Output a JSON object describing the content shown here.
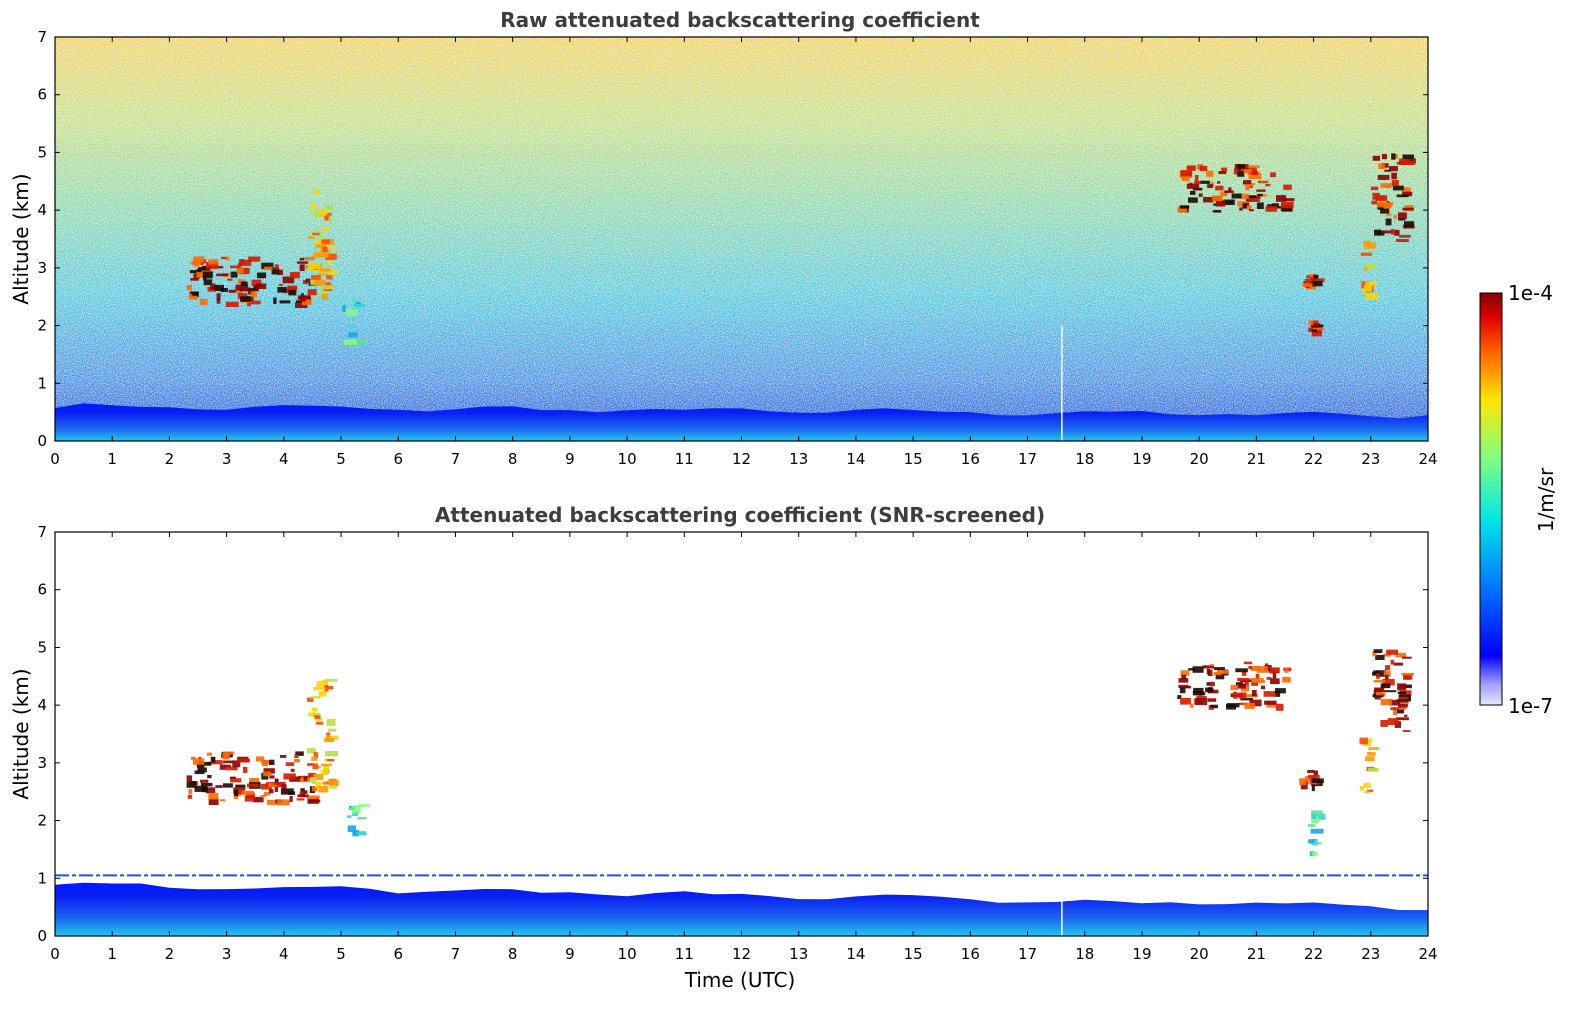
{
  "chart_data": [
    {
      "type": "heatmap",
      "title": "Raw attenuated backscattering coefficient",
      "xlabel": "",
      "ylabel": "Altitude (km)",
      "xlim": [
        0,
        24
      ],
      "ylim": [
        0,
        7
      ],
      "xticks": [
        "0",
        "1",
        "2",
        "3",
        "4",
        "5",
        "6",
        "7",
        "8",
        "9",
        "10",
        "11",
        "12",
        "13",
        "14",
        "15",
        "16",
        "17",
        "18",
        "19",
        "20",
        "21",
        "22",
        "23",
        "24"
      ],
      "yticks": [
        "0",
        "1",
        "2",
        "3",
        "4",
        "5",
        "6",
        "7"
      ],
      "features": [
        {
          "kind": "noise-gradient",
          "description": "background signal increasing with altitude"
        },
        {
          "kind": "boundary-layer",
          "x": [
            0,
            24
          ],
          "y_top": [
            0.6,
            0.45
          ]
        },
        {
          "kind": "cloud",
          "x": [
            2.3,
            4.5
          ],
          "y": [
            2.4,
            3.2
          ],
          "level": "high"
        },
        {
          "kind": "cloud",
          "x": [
            4.4,
            4.8
          ],
          "y": [
            2.5,
            4.5
          ],
          "level": "medium-high"
        },
        {
          "kind": "cloud",
          "x": [
            5.0,
            5.3
          ],
          "y": [
            1.7,
            2.5
          ],
          "level": "medium"
        },
        {
          "kind": "cloud",
          "x": [
            19.6,
            21.5
          ],
          "y": [
            4.0,
            4.8
          ],
          "level": "high"
        },
        {
          "kind": "cloud",
          "x": [
            21.8,
            22.0
          ],
          "y": [
            2.7,
            2.9
          ],
          "level": "high"
        },
        {
          "kind": "cloud",
          "x": [
            21.9,
            22.0
          ],
          "y": [
            1.9,
            2.1
          ],
          "level": "high"
        },
        {
          "kind": "cloud",
          "x": [
            22.8,
            23.0
          ],
          "y": [
            2.5,
            3.5
          ],
          "level": "medium-high"
        },
        {
          "kind": "cloud",
          "x": [
            23.0,
            23.6
          ],
          "y": [
            3.5,
            5.0
          ],
          "level": "high"
        }
      ]
    },
    {
      "type": "heatmap",
      "title": "Attenuated backscattering coefficient (SNR-screened)",
      "xlabel": "Time (UTC)",
      "ylabel": "Altitude (km)",
      "xlim": [
        0,
        24
      ],
      "ylim": [
        0,
        7
      ],
      "xticks": [
        "0",
        "1",
        "2",
        "3",
        "4",
        "5",
        "6",
        "7",
        "8",
        "9",
        "10",
        "11",
        "12",
        "13",
        "14",
        "15",
        "16",
        "17",
        "18",
        "19",
        "20",
        "21",
        "22",
        "23",
        "24"
      ],
      "yticks": [
        "0",
        "1",
        "2",
        "3",
        "4",
        "5",
        "6",
        "7"
      ],
      "features": [
        {
          "kind": "boundary-layer",
          "x": [
            0,
            24
          ],
          "y_top": [
            0.9,
            0.5
          ]
        },
        {
          "kind": "overlap-line",
          "x": [
            0,
            24
          ],
          "y": 1.05
        },
        {
          "kind": "cloud",
          "x": [
            2.3,
            4.5
          ],
          "y": [
            2.35,
            3.2
          ],
          "level": "high"
        },
        {
          "kind": "cloud",
          "x": [
            4.4,
            4.8
          ],
          "y": [
            2.5,
            4.5
          ],
          "level": "medium-high"
        },
        {
          "kind": "cloud",
          "x": [
            5.1,
            5.3
          ],
          "y": [
            1.7,
            2.3
          ],
          "level": "medium"
        },
        {
          "kind": "cloud",
          "x": [
            19.6,
            21.5
          ],
          "y": [
            4.0,
            4.8
          ],
          "level": "high"
        },
        {
          "kind": "cloud",
          "x": [
            21.7,
            22.0
          ],
          "y": [
            2.6,
            2.9
          ],
          "level": "high"
        },
        {
          "kind": "cloud",
          "x": [
            21.9,
            22.0
          ],
          "y": [
            1.3,
            2.2
          ],
          "level": "medium"
        },
        {
          "kind": "cloud",
          "x": [
            22.8,
            23.0
          ],
          "y": [
            2.5,
            3.5
          ],
          "level": "medium-high"
        },
        {
          "kind": "cloud",
          "x": [
            23.0,
            23.6
          ],
          "y": [
            3.5,
            5.0
          ],
          "level": "high"
        }
      ]
    }
  ],
  "colorbar": {
    "label": "1/m/sr",
    "max_label": "1e-4",
    "min_label": "1e-7",
    "colormap": "jet",
    "scale": "log"
  }
}
